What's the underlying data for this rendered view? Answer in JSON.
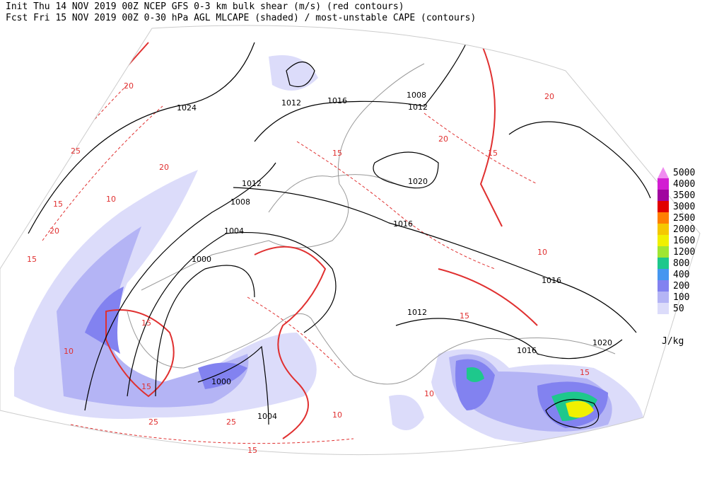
{
  "header": {
    "line1": "Init  Thu 14 NOV 2019 00Z  NCEP GFS 0-3 km bulk shear (m/s) (red contours)",
    "line2": "Fcst Fri 15 NOV 2019 00Z   0-30 hPa AGL MLCAPE (shaded) / most-unstable CAPE (contours)"
  },
  "legend": {
    "items": [
      {
        "label": "5000",
        "color": "#f08cf0"
      },
      {
        "label": "4000",
        "color": "#d21ed2"
      },
      {
        "label": "3500",
        "color": "#a0069f"
      },
      {
        "label": "3000",
        "color": "#e10000"
      },
      {
        "label": "2500",
        "color": "#ff7f00"
      },
      {
        "label": "2000",
        "color": "#f5c800"
      },
      {
        "label": "1600",
        "color": "#f0f000"
      },
      {
        "label": "1200",
        "color": "#a0e632"
      },
      {
        "label": "800",
        "color": "#1ec88c"
      },
      {
        "label": "400",
        "color": "#4696f0"
      },
      {
        "label": "200",
        "color": "#8282f0"
      },
      {
        "label": "100",
        "color": "#b4b4f5"
      },
      {
        "label": "50",
        "color": "#dcdcfa"
      }
    ],
    "unit": "J/kg"
  },
  "isobar_labels": [
    "1024",
    "1012",
    "1016",
    "1008",
    "1012",
    "1020",
    "1012",
    "1008",
    "1004",
    "1000",
    "1016",
    "1016",
    "1012",
    "1016",
    "1020",
    "1000",
    "1004"
  ],
  "shear_labels": [
    "20",
    "25",
    "15",
    "20",
    "15",
    "10",
    "20",
    "15",
    "25",
    "15",
    "10",
    "15",
    "20",
    "25",
    "15",
    "10",
    "15",
    "10",
    "20",
    "15",
    "10",
    "15"
  ]
}
